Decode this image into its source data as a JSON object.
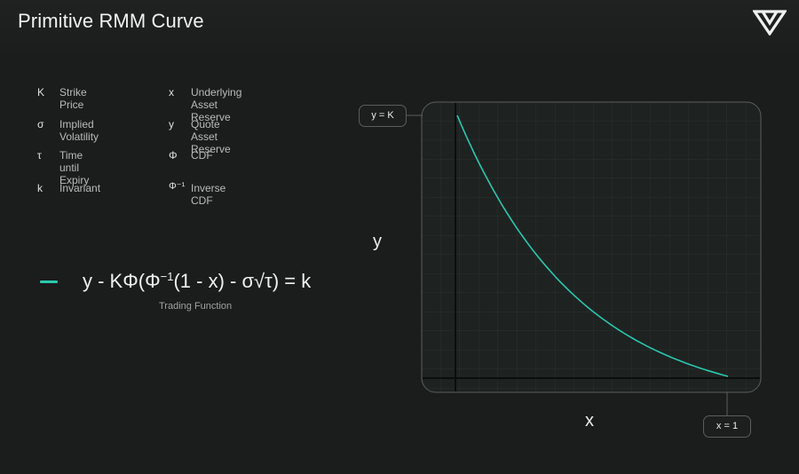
{
  "header": {
    "title": "Primitive RMM Curve",
    "logo_icon": "primitive-logo-icon"
  },
  "legend": [
    {
      "symbol": "K",
      "label": "Strike Price"
    },
    {
      "symbol": "σ",
      "label": "Implied Volatility"
    },
    {
      "symbol": "τ",
      "label": "Time until Expiry"
    },
    {
      "symbol": "k",
      "label": "Invariant"
    },
    {
      "symbol": "x",
      "label": "Underlying Asset Reserve"
    },
    {
      "symbol": "y",
      "label": "Quote Asset Reserve"
    },
    {
      "symbol": "Φ",
      "label": "CDF"
    },
    {
      "symbol": "Φ⁻¹",
      "label": "Inverse CDF"
    }
  ],
  "formula": {
    "part1": "y - KΦ(Φ",
    "sup": "−1",
    "part2": "(1 - x) - σ√τ) = k",
    "caption": "Trading Function"
  },
  "chart": {
    "y_axis_label": "y",
    "x_axis_label": "x",
    "y_callout": "y = K",
    "x_callout": "x = 1",
    "curve_color": "#2bc8b0"
  }
}
